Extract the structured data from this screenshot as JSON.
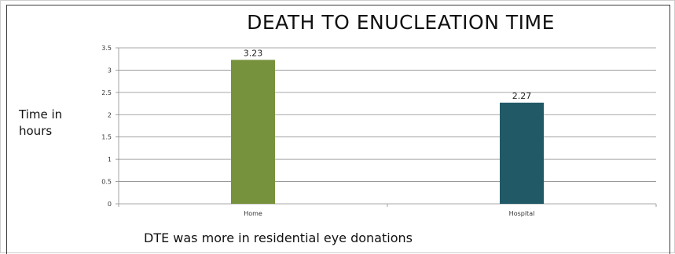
{
  "chart_data": {
    "type": "bar",
    "title": "DEATH TO ENUCLEATION TIME",
    "ylabel": "Time in\nhours",
    "xlabel": "",
    "categories": [
      "Home",
      "Hospital"
    ],
    "values": [
      3.23,
      2.27
    ],
    "data_labels": [
      "3.23",
      "2.27"
    ],
    "bar_colors": [
      "#77923c",
      "#215967"
    ],
    "ylim": [
      0,
      3.5
    ],
    "yticks": [
      "0",
      "0.5",
      "1",
      "1.5",
      "2",
      "2.5",
      "3",
      "3.5"
    ],
    "grid": true,
    "legend": "none"
  },
  "note": "DTE was more in residential eye donations"
}
